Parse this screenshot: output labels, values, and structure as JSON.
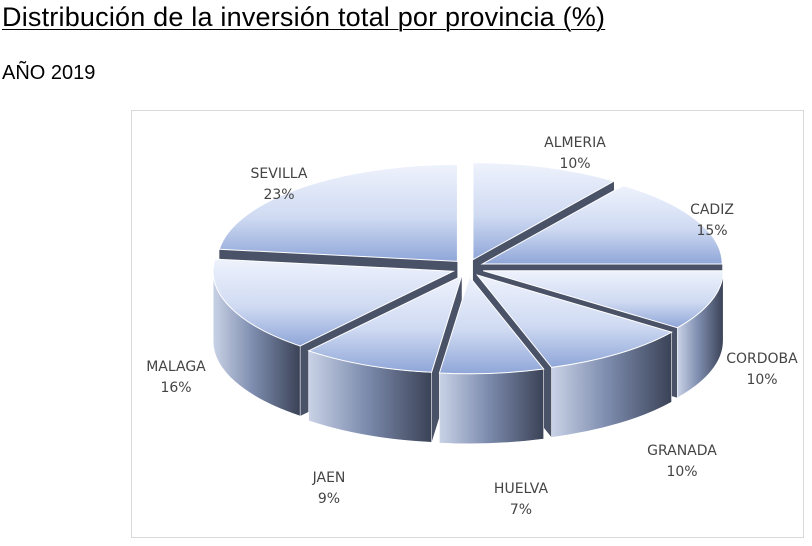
{
  "header": {
    "title": "Distribución de la inversión total por provincia (%)",
    "subtitle": "AÑO 2019"
  },
  "chart_data": {
    "type": "pie",
    "style": "3d-exploded",
    "title": "",
    "slices": [
      {
        "label": "ALMERIA",
        "value": 10,
        "value_label": "10%"
      },
      {
        "label": "CADIZ",
        "value": 15,
        "value_label": "15%"
      },
      {
        "label": "CORDOBA",
        "value": 10,
        "value_label": "10%"
      },
      {
        "label": "GRANADA",
        "value": 10,
        "value_label": "10%"
      },
      {
        "label": "HUELVA",
        "value": 7,
        "value_label": "7%"
      },
      {
        "label": "JAEN",
        "value": 9,
        "value_label": "9%"
      },
      {
        "label": "MALAGA",
        "value": 16,
        "value_label": "16%"
      },
      {
        "label": "SEVILLA",
        "value": 23,
        "value_label": "23%"
      }
    ],
    "colors": {
      "top_light": "#e8eefb",
      "top_dark": "#9fb2d6",
      "side_light": "#8e9cbc",
      "side_dark": "#3c4458",
      "label": "#444444"
    }
  }
}
